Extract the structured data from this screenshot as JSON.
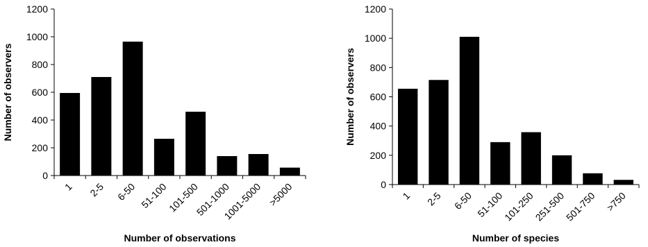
{
  "chart_data": [
    {
      "type": "bar",
      "categories": [
        "1",
        "2-5",
        "6-50",
        "51-100",
        "101-500",
        "501-1000",
        "1001-5000",
        ">5000"
      ],
      "values": [
        595,
        710,
        965,
        265,
        460,
        140,
        155,
        57
      ],
      "xlabel": "Number of observations",
      "ylabel": "Number of observers",
      "ylim": [
        0,
        1200
      ],
      "yticks": [
        0,
        200,
        400,
        600,
        800,
        1000,
        1200
      ],
      "bar_color": "#000000",
      "grid": false,
      "legend": "none"
    },
    {
      "type": "bar",
      "categories": [
        "1",
        "2-5",
        "6-50",
        "51-100",
        "101-250",
        "251-500",
        "501-750",
        ">750"
      ],
      "values": [
        655,
        715,
        1010,
        290,
        358,
        200,
        77,
        32
      ],
      "xlabel": "Number of species",
      "ylabel": "Number of observers",
      "ylim": [
        0,
        1200
      ],
      "yticks": [
        0,
        200,
        400,
        600,
        800,
        1000,
        1200
      ],
      "bar_color": "#000000",
      "grid": false,
      "legend": "none"
    }
  ]
}
